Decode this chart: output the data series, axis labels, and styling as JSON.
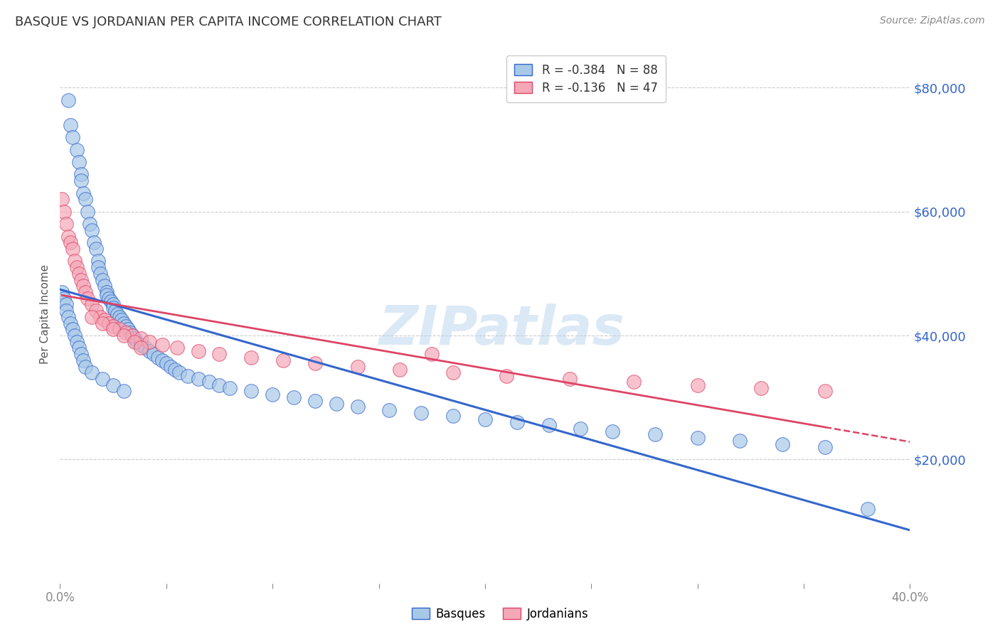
{
  "title": "BASQUE VS JORDANIAN PER CAPITA INCOME CORRELATION CHART",
  "source": "Source: ZipAtlas.com",
  "ylabel": "Per Capita Income",
  "xlabel_ticks_show": [
    "0.0%",
    "40.0%"
  ],
  "xlabel_ticks_all": [
    "0.0%",
    "",
    "",
    "",
    "",
    "",
    "",
    "",
    "40.0%"
  ],
  "xlabel_vals": [
    0.0,
    0.05,
    0.1,
    0.15,
    0.2,
    0.25,
    0.3,
    0.35,
    0.4
  ],
  "ytick_labels": [
    "$20,000",
    "$40,000",
    "$60,000",
    "$80,000"
  ],
  "ytick_vals": [
    20000,
    40000,
    60000,
    80000
  ],
  "xmin": 0.0,
  "xmax": 0.4,
  "ymin": 0,
  "ymax": 87000,
  "watermark": "ZIPatlas",
  "legend1_label": "R = -0.384   N = 88",
  "legend2_label": "R = -0.136   N = 47",
  "basque_color": "#a8c8e8",
  "jordanian_color": "#f4a8b8",
  "basque_line_color": "#3366cc",
  "jordanian_line_color": "#dd4466",
  "background_color": "#ffffff",
  "title_color": "#333333",
  "axis_color": "#3366cc",
  "grid_color": "#cccccc",
  "basque_x": [
    0.004,
    0.005,
    0.006,
    0.008,
    0.009,
    0.01,
    0.01,
    0.011,
    0.012,
    0.013,
    0.014,
    0.015,
    0.016,
    0.017,
    0.018,
    0.018,
    0.019,
    0.02,
    0.021,
    0.022,
    0.022,
    0.023,
    0.024,
    0.025,
    0.025,
    0.026,
    0.027,
    0.028,
    0.029,
    0.03,
    0.031,
    0.032,
    0.033,
    0.034,
    0.035,
    0.036,
    0.038,
    0.04,
    0.042,
    0.044,
    0.046,
    0.048,
    0.05,
    0.052,
    0.054,
    0.056,
    0.06,
    0.065,
    0.07,
    0.075,
    0.08,
    0.09,
    0.1,
    0.11,
    0.12,
    0.13,
    0.14,
    0.155,
    0.17,
    0.185,
    0.2,
    0.215,
    0.23,
    0.245,
    0.26,
    0.28,
    0.3,
    0.32,
    0.34,
    0.36,
    0.001,
    0.002,
    0.003,
    0.003,
    0.004,
    0.005,
    0.006,
    0.007,
    0.008,
    0.009,
    0.01,
    0.011,
    0.012,
    0.015,
    0.02,
    0.025,
    0.03,
    0.38
  ],
  "basque_y": [
    78000,
    74000,
    72000,
    70000,
    68000,
    66000,
    65000,
    63000,
    62000,
    60000,
    58000,
    57000,
    55000,
    54000,
    52000,
    51000,
    50000,
    49000,
    48000,
    47000,
    46500,
    46000,
    45500,
    45000,
    44500,
    44000,
    43500,
    43000,
    42500,
    42000,
    41500,
    41000,
    40500,
    40000,
    39500,
    39000,
    38500,
    38000,
    37500,
    37000,
    36500,
    36000,
    35500,
    35000,
    34500,
    34000,
    33500,
    33000,
    32500,
    32000,
    31500,
    31000,
    30500,
    30000,
    29500,
    29000,
    28500,
    28000,
    27500,
    27000,
    26500,
    26000,
    25500,
    25000,
    24500,
    24000,
    23500,
    23000,
    22500,
    22000,
    47000,
    46000,
    45000,
    44000,
    43000,
    42000,
    41000,
    40000,
    39000,
    38000,
    37000,
    36000,
    35000,
    34000,
    33000,
    32000,
    31000,
    12000
  ],
  "jordanian_x": [
    0.001,
    0.002,
    0.003,
    0.004,
    0.005,
    0.006,
    0.007,
    0.008,
    0.009,
    0.01,
    0.011,
    0.012,
    0.013,
    0.015,
    0.017,
    0.019,
    0.021,
    0.023,
    0.025,
    0.028,
    0.031,
    0.034,
    0.038,
    0.042,
    0.048,
    0.055,
    0.065,
    0.075,
    0.09,
    0.105,
    0.12,
    0.14,
    0.16,
    0.185,
    0.21,
    0.24,
    0.27,
    0.3,
    0.33,
    0.36,
    0.015,
    0.02,
    0.025,
    0.03,
    0.035,
    0.038,
    0.175
  ],
  "jordanian_y": [
    62000,
    60000,
    58000,
    56000,
    55000,
    54000,
    52000,
    51000,
    50000,
    49000,
    48000,
    47000,
    46000,
    45000,
    44000,
    43000,
    42500,
    42000,
    41500,
    41000,
    40500,
    40000,
    39500,
    39000,
    38500,
    38000,
    37500,
    37000,
    36500,
    36000,
    35500,
    35000,
    34500,
    34000,
    33500,
    33000,
    32500,
    32000,
    31500,
    31000,
    43000,
    42000,
    41000,
    40000,
    39000,
    38000,
    37000
  ]
}
